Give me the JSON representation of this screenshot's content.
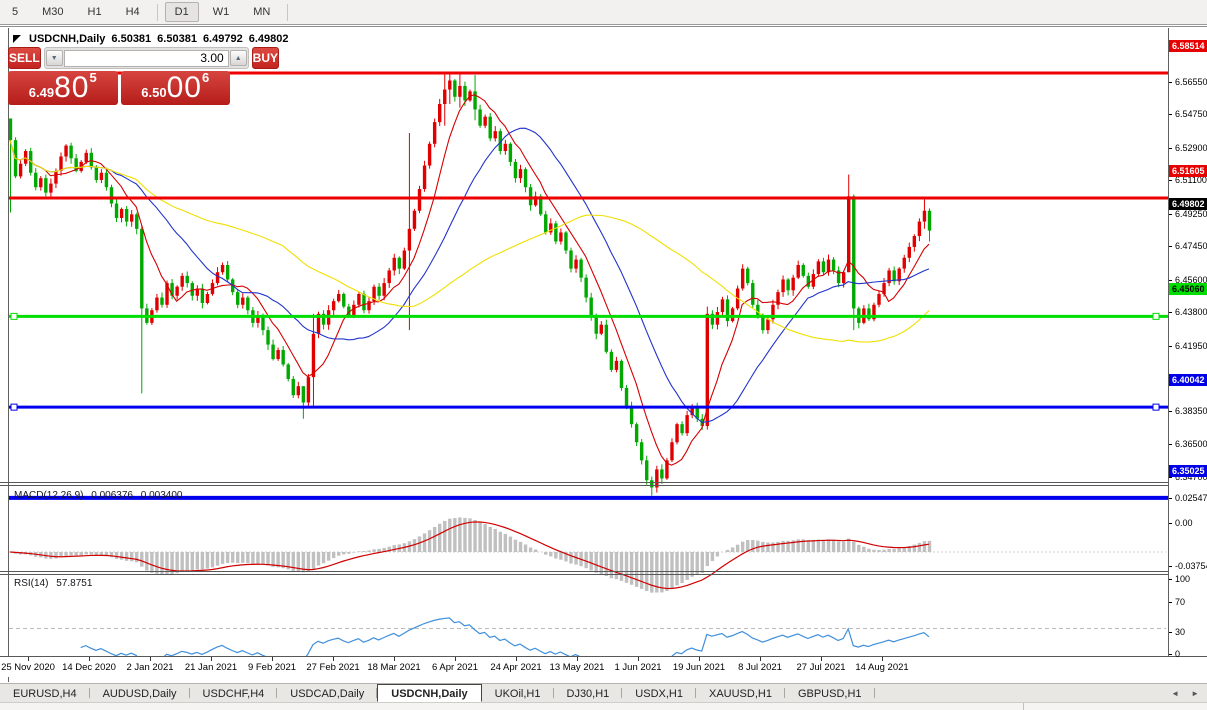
{
  "toolbar": {
    "items": [
      {
        "label": "5",
        "type": "button",
        "active": false
      },
      {
        "label": "M30",
        "type": "button",
        "active": false
      },
      {
        "label": "H1",
        "type": "button",
        "active": false
      },
      {
        "label": "H4",
        "type": "button",
        "active": false
      },
      {
        "label": "|",
        "type": "sep",
        "active": false
      },
      {
        "label": "D1",
        "type": "button",
        "active": true
      },
      {
        "label": "W1",
        "type": "button",
        "active": false
      },
      {
        "label": "MN",
        "type": "button",
        "active": false
      },
      {
        "label": "|",
        "type": "sep",
        "active": false
      }
    ]
  },
  "window_title": {
    "symbol": "USDCNH,Daily",
    "open": "6.50381",
    "high": "6.50381",
    "low": "6.49792",
    "close": "6.49802"
  },
  "trade_panel": {
    "sell_label": "SELL",
    "buy_label": "BUY",
    "volume": "3.00",
    "sell_price": {
      "small": "6.49",
      "big": "80",
      "sup": "5"
    },
    "buy_price": {
      "small": "6.50",
      "big": "00",
      "sup": "6"
    }
  },
  "icons": {
    "title_arrow": "triangle",
    "spinner_down": "▼",
    "spinner_up": "▲",
    "tab_scroll_left": "◄",
    "tab_scroll_right": "►"
  },
  "price_scale": {
    "ticks": [
      "6.56550",
      "6.54750",
      "6.52900",
      "6.51100",
      "6.49250",
      "6.47450",
      "6.45600",
      "6.43800",
      "6.41950",
      "6.38350",
      "6.36500",
      "6.34700"
    ],
    "badges": [
      {
        "label": "6.58514",
        "bg": "#e60000",
        "fg": "#ffffff"
      },
      {
        "label": "6.51605",
        "bg": "#e60000",
        "fg": "#ffffff"
      },
      {
        "label": "6.49802",
        "bg": "#000000",
        "fg": "#ffffff"
      },
      {
        "label": "6.45060",
        "bg": "#00dd00",
        "fg": "#000000"
      },
      {
        "label": "6.40042",
        "bg": "#0000e6",
        "fg": "#ffffff"
      },
      {
        "label": "6.35025",
        "bg": "#0000e6",
        "fg": "#ffffff"
      }
    ]
  },
  "chart_data": {
    "type": "candlestick",
    "symbol": "USDCNH",
    "timeframe": "Daily",
    "ylim": [
      6.3441,
      6.5951
    ],
    "first_open": 6.56,
    "closes": [
      6.548,
      6.528,
      6.535,
      6.542,
      6.53,
      6.522,
      6.527,
      6.519,
      6.524,
      6.531,
      6.539,
      6.545,
      6.538,
      6.531,
      6.536,
      6.541,
      6.533,
      6.526,
      6.53,
      6.522,
      6.513,
      6.505,
      6.51,
      6.503,
      6.507,
      6.499,
      6.455,
      6.447,
      6.454,
      6.461,
      6.457,
      6.469,
      6.462,
      6.467,
      6.473,
      6.469,
      6.462,
      6.466,
      6.458,
      6.463,
      6.469,
      6.475,
      6.479,
      6.471,
      6.464,
      6.457,
      6.461,
      6.454,
      6.447,
      6.451,
      6.443,
      6.435,
      6.427,
      6.432,
      6.424,
      6.416,
      6.407,
      6.412,
      6.403,
      6.417,
      6.441,
      6.452,
      6.446,
      6.454,
      6.459,
      6.463,
      6.456,
      6.451,
      6.457,
      6.463,
      6.454,
      6.459,
      6.467,
      6.462,
      6.469,
      6.476,
      6.483,
      6.477,
      6.487,
      6.499,
      6.509,
      6.521,
      6.534,
      6.546,
      6.558,
      6.568,
      6.576,
      6.581,
      6.572,
      6.578,
      6.57,
      6.575,
      6.565,
      6.556,
      6.561,
      6.549,
      6.553,
      6.542,
      6.546,
      6.536,
      6.527,
      6.532,
      6.522,
      6.512,
      6.517,
      6.507,
      6.497,
      6.502,
      6.492,
      6.497,
      6.487,
      6.477,
      6.482,
      6.472,
      6.461,
      6.451,
      6.441,
      6.446,
      6.431,
      6.421,
      6.426,
      6.411,
      6.401,
      6.391,
      6.381,
      6.371,
      6.36,
      6.356,
      6.366,
      6.361,
      6.371,
      6.381,
      6.391,
      6.386,
      6.396,
      6.401,
      6.394,
      6.39,
      6.452,
      6.446,
      6.453,
      6.46,
      6.448,
      6.455,
      6.466,
      6.477,
      6.469,
      6.457,
      6.451,
      6.443,
      6.449,
      6.457,
      6.464,
      6.471,
      6.465,
      6.472,
      6.479,
      6.473,
      6.467,
      6.474,
      6.481,
      6.475,
      6.482,
      6.476,
      6.469,
      6.475,
      6.517,
      6.455,
      6.447,
      6.455,
      6.449,
      6.457,
      6.463,
      6.469,
      6.476,
      6.47,
      6.477,
      6.483,
      6.489,
      6.495,
      6.503,
      6.509,
      6.498
    ],
    "spikes": {
      "0": [
        6.556,
        6.508
      ],
      "26": [
        6.501,
        6.408
      ],
      "58": [
        6.412,
        6.394
      ],
      "60": [
        6.452,
        6.401
      ],
      "79": [
        6.552,
        6.443
      ],
      "86": [
        6.585,
        6.556
      ],
      "87": [
        6.5853,
        6.568
      ],
      "89": [
        6.5848,
        6.566
      ],
      "92": [
        6.584,
        6.559
      ],
      "127": [
        6.362,
        6.3515
      ],
      "138": [
        6.456,
        6.388
      ],
      "166": [
        6.529,
        6.475
      ],
      "167": [
        6.518,
        6.443
      ],
      "181": [
        6.5158,
        6.499
      ],
      "182": [
        6.5103,
        6.492
      ]
    },
    "colors": {
      "up": "#e00000",
      "down": "#00a800",
      "macd_hist": "#c0c0c0",
      "macd_signal": "#d00000",
      "rsi_line": "#3f8fdc"
    },
    "moving_averages": [
      {
        "period": 8,
        "color": "#d40000"
      },
      {
        "period": 21,
        "color": "#2233cc"
      },
      {
        "period": 55,
        "color": "#efe000"
      }
    ],
    "levels": [
      {
        "value": 6.58514,
        "color": "#ee0000",
        "width": 3,
        "handles": false
      },
      {
        "value": 6.51605,
        "color": "#ee0000",
        "width": 3,
        "handles": false
      },
      {
        "value": 6.4506,
        "color": "#00dd00",
        "width": 3,
        "handles": true
      },
      {
        "value": 6.40042,
        "color": "#0000ee",
        "width": 3,
        "handles": true
      },
      {
        "value": 6.35025,
        "color": "#0000ee",
        "width": 4,
        "handles": false
      }
    ],
    "current_price": 6.49802,
    "x_labels": [
      "25 Nov 2020",
      "14 Dec 2020",
      "2 Jan 2021",
      "21 Jan 2021",
      "9 Feb 2021",
      "27 Feb 2021",
      "18 Mar 2021",
      "6 Apr 2021",
      "24 Apr 2021",
      "13 May 2021",
      "1 Jun 2021",
      "19 Jun 2021",
      "8 Jul 2021",
      "27 Jul 2021",
      "14 Aug 2021"
    ],
    "indicators": {
      "macd": {
        "name": "MACD(12,26,9)",
        "main_value": "0.006376",
        "signal_value": "0.003400",
        "params": [
          12,
          26,
          9
        ],
        "scale": [
          "0.025473",
          "0.00",
          "-0.03754"
        ]
      },
      "rsi": {
        "name": "RSI(14)",
        "value": "57.8751",
        "params": [
          14
        ],
        "scale": [
          "100",
          "70",
          "30",
          "0"
        ],
        "levels": [
          70,
          30
        ]
      }
    }
  },
  "tabs": {
    "items": [
      "EURUSD,H4",
      "AUDUSD,Daily",
      "USDCHF,H4",
      "USDCAD,Daily",
      "USDCNH,Daily",
      "UKOil,H1",
      "DJ30,H1",
      "USDX,H1",
      "XAUUSD,H1",
      "GBPUSD,H1"
    ],
    "active_index": 4
  }
}
